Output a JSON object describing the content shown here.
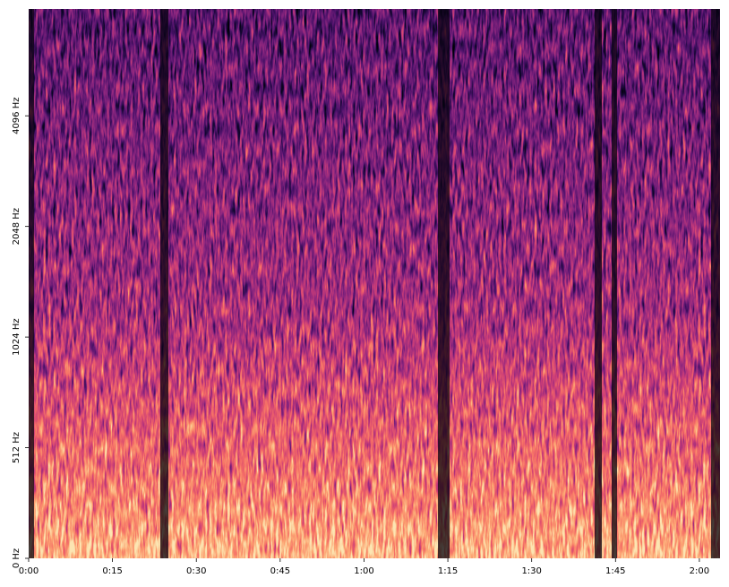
{
  "chart_data": {
    "type": "spectrogram",
    "xlim": [
      0,
      123.7
    ],
    "xticks": [
      {
        "value": 0,
        "label": "0:00"
      },
      {
        "value": 15,
        "label": "0:15"
      },
      {
        "value": 30,
        "label": "0:30"
      },
      {
        "value": 45,
        "label": "0:45"
      },
      {
        "value": 60,
        "label": "1:00"
      },
      {
        "value": 75,
        "label": "1:15"
      },
      {
        "value": 90,
        "label": "1:30"
      },
      {
        "value": 105,
        "label": "1:45"
      },
      {
        "value": 120,
        "label": "2:00"
      }
    ],
    "ylim": [
      0,
      8000
    ],
    "yscale": "symlog",
    "yticks": [
      {
        "value": 0,
        "label": "0 Hz"
      },
      {
        "value": 512,
        "label": "512 Hz"
      },
      {
        "value": 1024,
        "label": "1024 Hz"
      },
      {
        "value": 2048,
        "label": "2048 Hz"
      },
      {
        "value": 4096,
        "label": "4096 Hz"
      }
    ],
    "colormap": "magma"
  }
}
